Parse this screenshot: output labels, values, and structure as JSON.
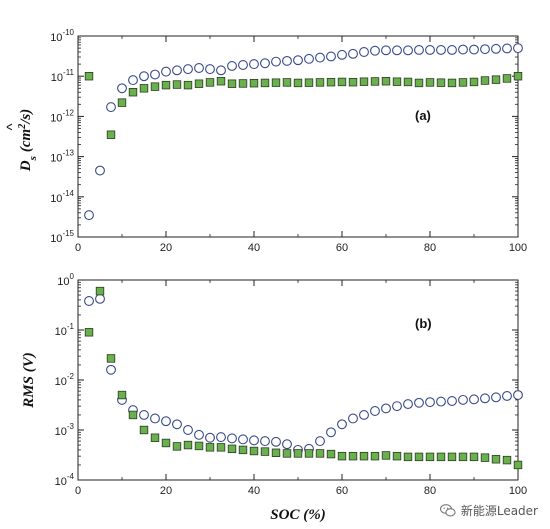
{
  "chart_data": [
    {
      "type": "scatter",
      "panel_label": "(a)",
      "xlabel": "",
      "ylabel": "D̂s (cm²/s)",
      "ylabel_parts": {
        "base": "D",
        "sub": "s",
        "units": "(cm",
        "sup": "2",
        "units_end": "/s)"
      },
      "yscale": "log",
      "xlim": [
        0,
        100
      ],
      "ylim_exponents": [
        -15,
        -10
      ],
      "x_ticks": [
        "0",
        "20",
        "40",
        "60",
        "80",
        "100"
      ],
      "y_ticks": [
        "-15",
        "-14",
        "-13",
        "-12",
        "-11",
        "-10"
      ],
      "series": [
        {
          "marker": "open-circle",
          "color": "#3a4a8a",
          "x": [
            2.5,
            5,
            7.5,
            10,
            12.5,
            15,
            17.5,
            20,
            22.5,
            25,
            27.5,
            30,
            32.5,
            35,
            37.5,
            40,
            42.5,
            45,
            47.5,
            50,
            52.5,
            55,
            57.5,
            60,
            62.5,
            65,
            67.5,
            70,
            72.5,
            75,
            77.5,
            80,
            82.5,
            85,
            87.5,
            90,
            92.5,
            95,
            97.5,
            100
          ],
          "y": [
            3.5e-15,
            4.5e-14,
            1.7e-12,
            5e-12,
            8e-12,
            1e-11,
            1.1e-11,
            1.3e-11,
            1.4e-11,
            1.5e-11,
            1.6e-11,
            1.5e-11,
            1.4e-11,
            1.8e-11,
            1.9e-11,
            2e-11,
            2.1e-11,
            2.3e-11,
            2.4e-11,
            2.5e-11,
            2.7e-11,
            2.9e-11,
            3.1e-11,
            3.4e-11,
            3.6e-11,
            4e-11,
            4.3e-11,
            4.4e-11,
            4.4e-11,
            4.4e-11,
            4.5e-11,
            4.5e-11,
            4.5e-11,
            4.5e-11,
            4.6e-11,
            4.6e-11,
            4.7e-11,
            4.8e-11,
            4.9e-11,
            5e-11
          ]
        },
        {
          "marker": "filled-square",
          "color": "#6bb04f",
          "x": [
            2.5,
            7.5,
            10,
            12.5,
            15,
            17.5,
            20,
            22.5,
            25,
            27.5,
            30,
            32.5,
            35,
            37.5,
            40,
            42.5,
            45,
            47.5,
            50,
            52.5,
            55,
            57.5,
            60,
            62.5,
            65,
            67.5,
            70,
            72.5,
            75,
            77.5,
            80,
            82.5,
            85,
            87.5,
            90,
            92.5,
            95,
            97.5,
            100
          ],
          "y": [
            1e-11,
            3.5e-13,
            2.2e-12,
            4e-12,
            5e-12,
            5.5e-12,
            6e-12,
            6.2e-12,
            6e-12,
            6.5e-12,
            7e-12,
            7.5e-12,
            6.5e-12,
            6.6e-12,
            6.7e-12,
            6.8e-12,
            6.9e-12,
            7e-12,
            6.8e-12,
            6.9e-12,
            7e-12,
            7.1e-12,
            7.2e-12,
            7.1e-12,
            7.3e-12,
            7.4e-12,
            7.5e-12,
            7.3e-12,
            7.2e-12,
            6.8e-12,
            7e-12,
            6.9e-12,
            6.8e-12,
            7e-12,
            7.2e-12,
            7.8e-12,
            8.2e-12,
            8.8e-12,
            1e-11
          ]
        }
      ]
    },
    {
      "type": "scatter",
      "panel_label": "(b)",
      "xlabel": "SOC (%)",
      "ylabel": "RMS (V)",
      "yscale": "log",
      "xlim": [
        0,
        100
      ],
      "ylim_exponents": [
        -4,
        0
      ],
      "x_ticks": [
        "0",
        "20",
        "40",
        "60",
        "80",
        "100"
      ],
      "y_ticks": [
        "-4",
        "-3",
        "-2",
        "-1",
        "0"
      ],
      "series": [
        {
          "marker": "open-circle",
          "color": "#3a4a8a",
          "x": [
            2.5,
            5,
            7.5,
            10,
            12.5,
            15,
            17.5,
            20,
            22.5,
            25,
            27.5,
            30,
            32.5,
            35,
            37.5,
            40,
            42.5,
            45,
            47.5,
            50,
            52.5,
            55,
            57.5,
            60,
            62.5,
            65,
            67.5,
            70,
            72.5,
            75,
            77.5,
            80,
            82.5,
            85,
            87.5,
            90,
            92.5,
            95,
            97.5,
            100
          ],
          "y": [
            0.38,
            0.42,
            0.016,
            0.004,
            0.0025,
            0.002,
            0.0017,
            0.0015,
            0.0013,
            0.001,
            0.0008,
            0.0007,
            0.00072,
            0.00068,
            0.00065,
            0.00062,
            0.0006,
            0.00058,
            0.00052,
            0.0004,
            0.00042,
            0.0006,
            0.0009,
            0.0013,
            0.0017,
            0.002,
            0.0024,
            0.0027,
            0.003,
            0.0033,
            0.0035,
            0.0036,
            0.0037,
            0.0038,
            0.004,
            0.0041,
            0.0043,
            0.0045,
            0.0048,
            0.005
          ]
        },
        {
          "marker": "filled-square",
          "color": "#6bb04f",
          "x": [
            2.5,
            5,
            7.5,
            10,
            12.5,
            15,
            17.5,
            20,
            22.5,
            25,
            27.5,
            30,
            32.5,
            35,
            37.5,
            40,
            42.5,
            45,
            47.5,
            50,
            52.5,
            55,
            57.5,
            60,
            62.5,
            65,
            67.5,
            70,
            72.5,
            75,
            77.5,
            80,
            82.5,
            85,
            87.5,
            90,
            92.5,
            95,
            97.5,
            100
          ],
          "y": [
            0.09,
            0.6,
            0.027,
            0.005,
            0.002,
            0.001,
            0.0007,
            0.00055,
            0.00047,
            0.0005,
            0.00048,
            0.00045,
            0.00045,
            0.00042,
            0.0004,
            0.00038,
            0.00037,
            0.00035,
            0.00034,
            0.00034,
            0.00034,
            0.00034,
            0.00033,
            0.0003,
            0.0003,
            0.0003,
            0.0003,
            0.00031,
            0.0003,
            0.00029,
            0.00029,
            0.00029,
            0.00029,
            0.00029,
            0.00029,
            0.00029,
            0.00028,
            0.00026,
            0.00025,
            0.0002
          ]
        }
      ]
    }
  ],
  "watermark": {
    "text": "新能源Leader",
    "icon": "wechat-icon"
  }
}
